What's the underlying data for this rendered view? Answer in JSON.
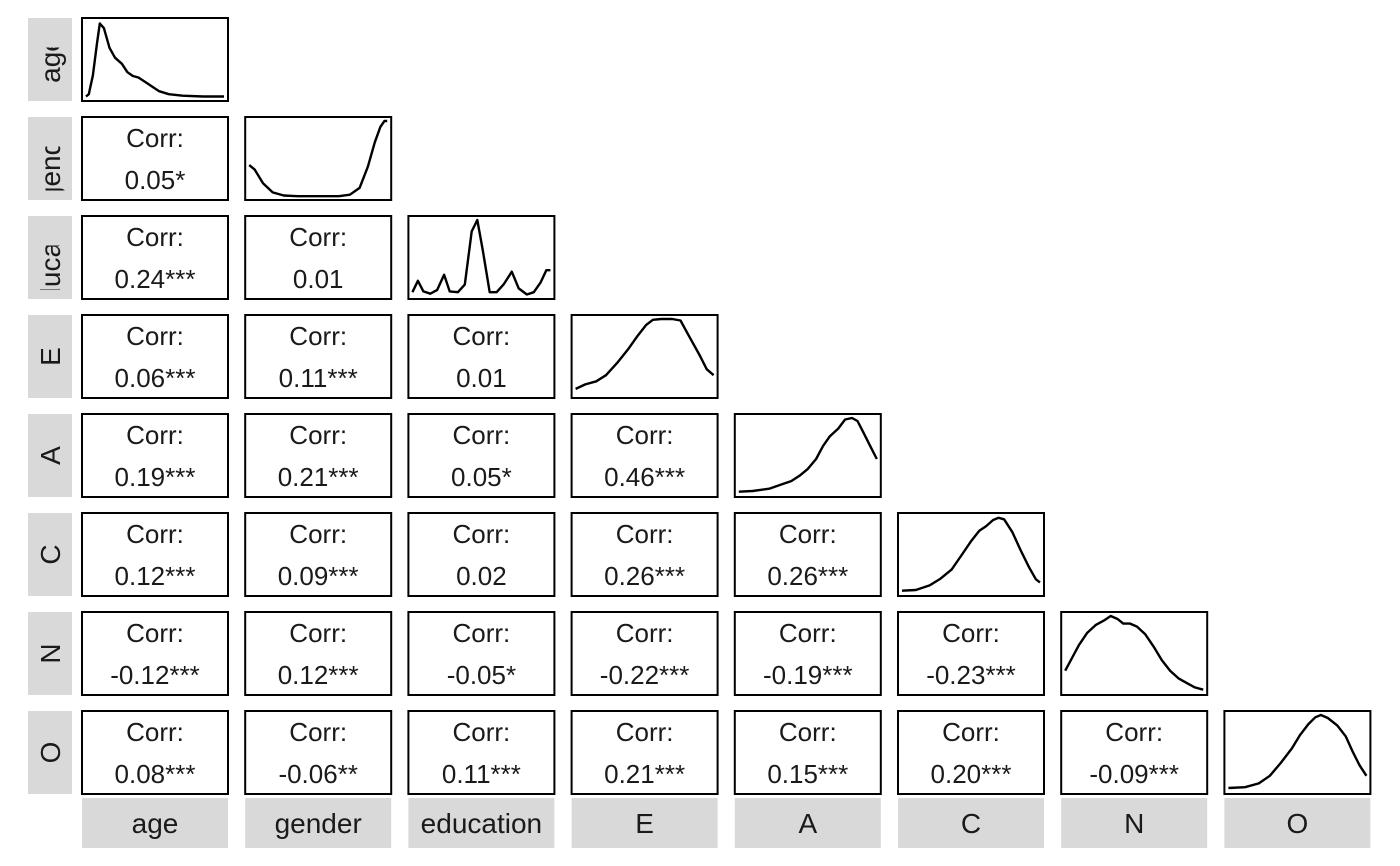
{
  "chart_data": {
    "type": "pairs",
    "variables": [
      "age",
      "gender",
      "education",
      "E",
      "A",
      "C",
      "N",
      "O"
    ],
    "corr_label": "Corr:",
    "correlations": [
      {
        "row": "gender",
        "col": "age",
        "label": "0.05*"
      },
      {
        "row": "education",
        "col": "age",
        "label": "0.24***"
      },
      {
        "row": "education",
        "col": "gender",
        "label": "0.01"
      },
      {
        "row": "E",
        "col": "age",
        "label": "0.06***"
      },
      {
        "row": "E",
        "col": "gender",
        "label": "0.11***"
      },
      {
        "row": "E",
        "col": "education",
        "label": "0.01"
      },
      {
        "row": "A",
        "col": "age",
        "label": "0.19***"
      },
      {
        "row": "A",
        "col": "gender",
        "label": "0.21***"
      },
      {
        "row": "A",
        "col": "education",
        "label": "0.05*"
      },
      {
        "row": "A",
        "col": "E",
        "label": "0.46***"
      },
      {
        "row": "C",
        "col": "age",
        "label": "0.12***"
      },
      {
        "row": "C",
        "col": "gender",
        "label": "0.09***"
      },
      {
        "row": "C",
        "col": "education",
        "label": "0.02"
      },
      {
        "row": "C",
        "col": "E",
        "label": "0.26***"
      },
      {
        "row": "C",
        "col": "A",
        "label": "0.26***"
      },
      {
        "row": "N",
        "col": "age",
        "label": "-0.12***"
      },
      {
        "row": "N",
        "col": "gender",
        "label": "0.12***"
      },
      {
        "row": "N",
        "col": "education",
        "label": "-0.05*"
      },
      {
        "row": "N",
        "col": "E",
        "label": "-0.22***"
      },
      {
        "row": "N",
        "col": "A",
        "label": "-0.19***"
      },
      {
        "row": "N",
        "col": "C",
        "label": "-0.23***"
      },
      {
        "row": "O",
        "col": "age",
        "label": "0.08***"
      },
      {
        "row": "O",
        "col": "gender",
        "label": "-0.06**"
      },
      {
        "row": "O",
        "col": "education",
        "label": "0.11***"
      },
      {
        "row": "O",
        "col": "E",
        "label": "0.21***"
      },
      {
        "row": "O",
        "col": "A",
        "label": "0.15***"
      },
      {
        "row": "O",
        "col": "C",
        "label": "0.20***"
      },
      {
        "row": "O",
        "col": "N",
        "label": "-0.09***"
      }
    ],
    "densities": {
      "age": [
        [
          0,
          0.02
        ],
        [
          0.02,
          0.05
        ],
        [
          0.05,
          0.3
        ],
        [
          0.08,
          0.72
        ],
        [
          0.1,
          0.98
        ],
        [
          0.13,
          0.92
        ],
        [
          0.17,
          0.66
        ],
        [
          0.21,
          0.53
        ],
        [
          0.26,
          0.45
        ],
        [
          0.3,
          0.34
        ],
        [
          0.34,
          0.29
        ],
        [
          0.38,
          0.27
        ],
        [
          0.43,
          0.21
        ],
        [
          0.48,
          0.15
        ],
        [
          0.53,
          0.09
        ],
        [
          0.6,
          0.05
        ],
        [
          0.7,
          0.03
        ],
        [
          0.85,
          0.02
        ],
        [
          1,
          0.02
        ]
      ],
      "gender": [
        [
          0,
          0.42
        ],
        [
          0.04,
          0.36
        ],
        [
          0.1,
          0.18
        ],
        [
          0.17,
          0.06
        ],
        [
          0.25,
          0.02
        ],
        [
          0.35,
          0.01
        ],
        [
          0.5,
          0.01
        ],
        [
          0.65,
          0.01
        ],
        [
          0.73,
          0.03
        ],
        [
          0.8,
          0.12
        ],
        [
          0.86,
          0.4
        ],
        [
          0.91,
          0.72
        ],
        [
          0.95,
          0.92
        ],
        [
          0.98,
          1
        ],
        [
          1,
          1
        ]
      ],
      "education": [
        [
          0,
          0.05
        ],
        [
          0.04,
          0.2
        ],
        [
          0.08,
          0.06
        ],
        [
          0.13,
          0.03
        ],
        [
          0.18,
          0.08
        ],
        [
          0.23,
          0.28
        ],
        [
          0.27,
          0.06
        ],
        [
          0.33,
          0.05
        ],
        [
          0.38,
          0.15
        ],
        [
          0.43,
          0.85
        ],
        [
          0.47,
          1
        ],
        [
          0.51,
          0.6
        ],
        [
          0.56,
          0.05
        ],
        [
          0.61,
          0.05
        ],
        [
          0.66,
          0.15
        ],
        [
          0.72,
          0.32
        ],
        [
          0.77,
          0.1
        ],
        [
          0.83,
          0.02
        ],
        [
          0.88,
          0.05
        ],
        [
          0.93,
          0.18
        ],
        [
          0.97,
          0.34
        ],
        [
          1,
          0.34
        ]
      ],
      "E": [
        [
          0,
          0.08
        ],
        [
          0.07,
          0.14
        ],
        [
          0.15,
          0.18
        ],
        [
          0.22,
          0.26
        ],
        [
          0.3,
          0.42
        ],
        [
          0.38,
          0.6
        ],
        [
          0.45,
          0.78
        ],
        [
          0.51,
          0.92
        ],
        [
          0.56,
          0.99
        ],
        [
          0.62,
          1
        ],
        [
          0.7,
          1
        ],
        [
          0.76,
          0.98
        ],
        [
          0.82,
          0.78
        ],
        [
          0.9,
          0.52
        ],
        [
          0.95,
          0.34
        ],
        [
          1,
          0.26
        ]
      ],
      "A": [
        [
          0,
          0.03
        ],
        [
          0.1,
          0.04
        ],
        [
          0.22,
          0.07
        ],
        [
          0.3,
          0.12
        ],
        [
          0.38,
          0.17
        ],
        [
          0.44,
          0.24
        ],
        [
          0.5,
          0.33
        ],
        [
          0.56,
          0.46
        ],
        [
          0.61,
          0.63
        ],
        [
          0.66,
          0.76
        ],
        [
          0.72,
          0.86
        ],
        [
          0.77,
          0.98
        ],
        [
          0.82,
          1
        ],
        [
          0.86,
          0.96
        ],
        [
          0.9,
          0.82
        ],
        [
          0.95,
          0.64
        ],
        [
          1,
          0.46
        ]
      ],
      "C": [
        [
          0,
          0.03
        ],
        [
          0.1,
          0.04
        ],
        [
          0.2,
          0.1
        ],
        [
          0.28,
          0.19
        ],
        [
          0.36,
          0.31
        ],
        [
          0.44,
          0.52
        ],
        [
          0.5,
          0.68
        ],
        [
          0.56,
          0.82
        ],
        [
          0.61,
          0.88
        ],
        [
          0.66,
          0.96
        ],
        [
          0.7,
          0.99
        ],
        [
          0.74,
          0.97
        ],
        [
          0.8,
          0.8
        ],
        [
          0.86,
          0.56
        ],
        [
          0.92,
          0.34
        ],
        [
          0.97,
          0.18
        ],
        [
          1,
          0.14
        ]
      ],
      "N": [
        [
          0,
          0.28
        ],
        [
          0.05,
          0.45
        ],
        [
          0.1,
          0.62
        ],
        [
          0.16,
          0.78
        ],
        [
          0.22,
          0.88
        ],
        [
          0.28,
          0.94
        ],
        [
          0.33,
          1
        ],
        [
          0.38,
          0.96
        ],
        [
          0.42,
          0.9
        ],
        [
          0.47,
          0.9
        ],
        [
          0.52,
          0.86
        ],
        [
          0.58,
          0.76
        ],
        [
          0.64,
          0.6
        ],
        [
          0.7,
          0.42
        ],
        [
          0.76,
          0.28
        ],
        [
          0.82,
          0.18
        ],
        [
          0.88,
          0.12
        ],
        [
          0.94,
          0.06
        ],
        [
          1,
          0.03
        ]
      ],
      "O": [
        [
          0,
          0.04
        ],
        [
          0.12,
          0.05
        ],
        [
          0.22,
          0.1
        ],
        [
          0.3,
          0.2
        ],
        [
          0.38,
          0.37
        ],
        [
          0.46,
          0.56
        ],
        [
          0.52,
          0.74
        ],
        [
          0.58,
          0.88
        ],
        [
          0.63,
          0.97
        ],
        [
          0.67,
          1
        ],
        [
          0.72,
          0.96
        ],
        [
          0.79,
          0.86
        ],
        [
          0.85,
          0.72
        ],
        [
          0.9,
          0.52
        ],
        [
          0.95,
          0.34
        ],
        [
          1,
          0.2
        ]
      ]
    }
  }
}
